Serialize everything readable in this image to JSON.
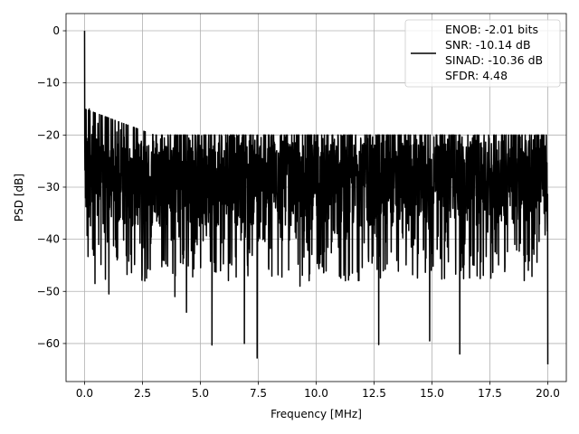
{
  "chart_data": {
    "type": "line",
    "title": "",
    "xlabel": "Frequency [MHz]",
    "ylabel": "PSD [dB]",
    "xlim": [
      -0.8,
      20.8
    ],
    "ylim": [
      -67.3,
      3.3
    ],
    "xticks": [
      0.0,
      2.5,
      5.0,
      7.5,
      10.0,
      12.5,
      15.0,
      17.5,
      20.0
    ],
    "xtick_labels": [
      "0.0",
      "2.5",
      "5.0",
      "7.5",
      "10.0",
      "12.5",
      "15.0",
      "17.5",
      "20.0"
    ],
    "yticks": [
      0,
      -10,
      -20,
      -30,
      -40,
      -50,
      -60
    ],
    "ytick_labels": [
      "0",
      "−10",
      "−20",
      "−30",
      "−40",
      "−50",
      "−60"
    ],
    "grid": true,
    "legend_position": "top-right",
    "series": [
      {
        "name": "ENOB: -2.01 bits\nSNR: -10.14 dB\nSINAD: -10.36 dB\nSFDR: 4.48",
        "color": "#000000",
        "x_range": [
          0,
          20
        ],
        "mean": -29.5,
        "spread_max": -20,
        "spread_min": -42,
        "max": 0,
        "min": -64,
        "notable_points": [
          {
            "x": 0.0,
            "y": 0
          },
          {
            "x": 0.05,
            "y": -26
          },
          {
            "x": 0.2,
            "y": -15
          },
          {
            "x": 0.45,
            "y": -48.5
          },
          {
            "x": 1.05,
            "y": -50.5
          },
          {
            "x": 2.6,
            "y": -48
          },
          {
            "x": 3.9,
            "y": -51
          },
          {
            "x": 4.4,
            "y": -54
          },
          {
            "x": 5.5,
            "y": -60.3
          },
          {
            "x": 6.9,
            "y": -60
          },
          {
            "x": 7.45,
            "y": -62.8
          },
          {
            "x": 9.3,
            "y": -49
          },
          {
            "x": 12.7,
            "y": -60.2
          },
          {
            "x": 14.9,
            "y": -59.5
          },
          {
            "x": 16.2,
            "y": -62
          },
          {
            "x": 20.0,
            "y": -64
          }
        ]
      }
    ],
    "legend": {
      "entries": [
        "ENOB: -2.01 bits",
        "SNR: -10.14 dB",
        "SINAD: -10.36 dB",
        "SFDR: 4.48"
      ]
    }
  }
}
